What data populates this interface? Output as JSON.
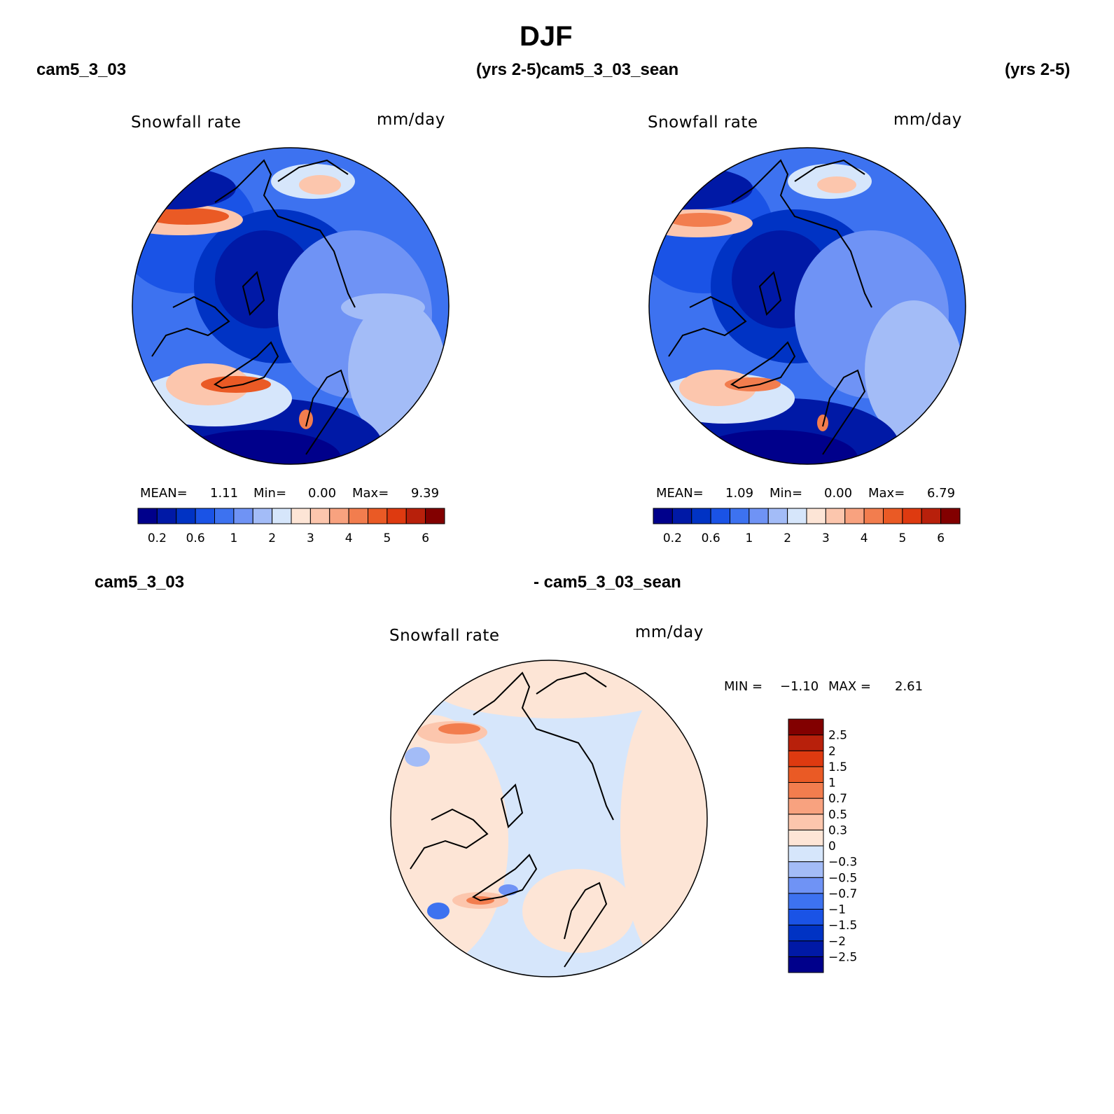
{
  "title": "DJF",
  "panels": [
    {
      "case_name": "cam5_3_03",
      "years": "(yrs 2-5)",
      "variable": "Snowfall rate",
      "units": "mm/day",
      "stats": {
        "mean_label": "MEAN=",
        "mean": "1.11",
        "min_label": "Min=",
        "min": "0.00",
        "max_label": "Max=",
        "max": "9.39"
      }
    },
    {
      "case_name": "cam5_3_03_sean",
      "years": "(yrs 2-5)",
      "variable": "Snowfall rate",
      "units": "mm/day",
      "stats": {
        "mean_label": "MEAN=",
        "mean": "1.09",
        "min_label": "Min=",
        "min": "0.00",
        "max_label": "Max=",
        "max": "6.79"
      }
    }
  ],
  "diff_panel": {
    "case_a": "cam5_3_03",
    "case_b": "- cam5_3_03_sean",
    "variable": "Snowfall rate",
    "units": "mm/day",
    "min_label": "MIN =",
    "min": "−1.10",
    "max_label": "MAX =",
    "max": "2.61"
  },
  "colorbar_main": {
    "colors": [
      "#00008b",
      "#0019a6",
      "#0033c4",
      "#1a53e6",
      "#3d72f0",
      "#6f93f5",
      "#a3bcf7",
      "#d6e6fb",
      "#fde5d6",
      "#fcc6ad",
      "#f8a27f",
      "#f27d4e",
      "#ea5a25",
      "#de3a10",
      "#b8200b",
      "#820000"
    ],
    "tick_labels": [
      "0.2",
      "0.6",
      "1",
      "2",
      "3",
      "4",
      "5",
      "6"
    ]
  },
  "colorbar_diff": {
    "colors": [
      "#00008b",
      "#0019a6",
      "#0033c4",
      "#1a53e6",
      "#3d72f0",
      "#6f93f5",
      "#a3bcf7",
      "#d6e6fb",
      "#fde5d6",
      "#fcc6ad",
      "#f8a27f",
      "#f27d4e",
      "#ea5a25",
      "#de3a10",
      "#b8200b",
      "#820000"
    ],
    "tick_labels": [
      "−2.5",
      "−2",
      "−1.5",
      "−1",
      "−0.7",
      "−0.5",
      "−0.3",
      "0",
      "0.3",
      "0.5",
      "0.7",
      "1",
      "1.5",
      "2",
      "2.5"
    ]
  }
}
